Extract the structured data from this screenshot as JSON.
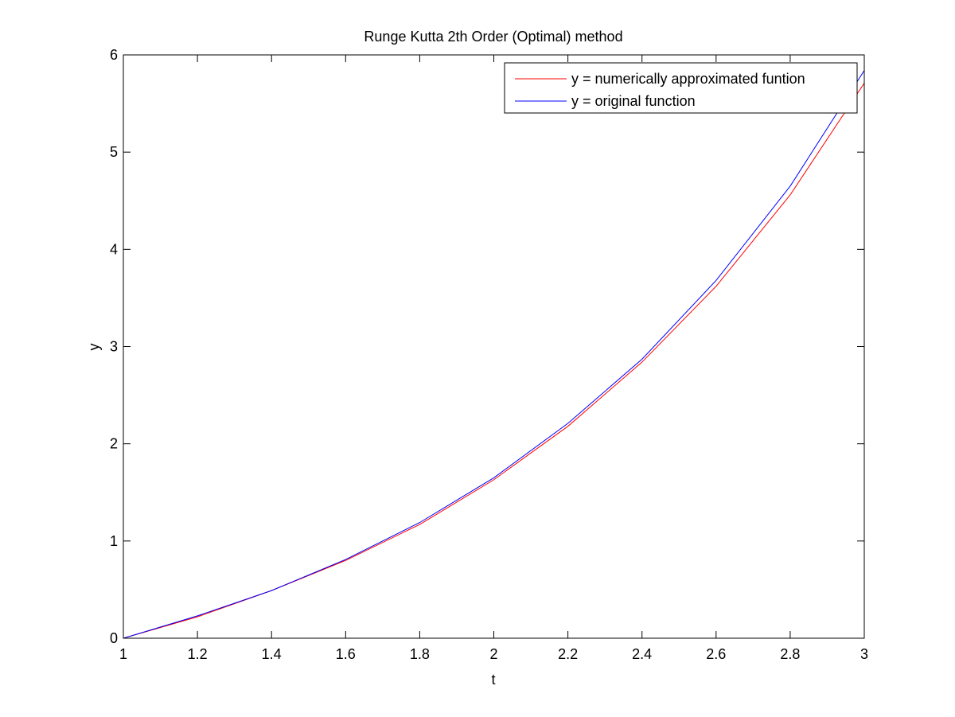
{
  "figure": {
    "title": "Runge Kutta 2th Order (Optimal) method",
    "xlabel": "t",
    "ylabel": "y"
  },
  "chart_data": {
    "type": "line",
    "title": "Runge Kutta 2th Order (Optimal) method",
    "xlabel": "t",
    "ylabel": "y",
    "xlim": [
      1,
      3
    ],
    "ylim": [
      0,
      6
    ],
    "xticks": [
      1,
      1.2,
      1.4,
      1.6,
      1.8,
      2,
      2.2,
      2.4,
      2.6,
      2.8,
      3
    ],
    "xtick_labels": [
      "1",
      "1.2",
      "1.4",
      "1.6",
      "1.8",
      "2",
      "2.2",
      "2.4",
      "2.6",
      "2.8",
      "3"
    ],
    "yticks": [
      0,
      1,
      2,
      3,
      4,
      5,
      6
    ],
    "ytick_labels": [
      "0",
      "1",
      "2",
      "3",
      "4",
      "5",
      "6"
    ],
    "grid": false,
    "legend_position": "top-right",
    "x": [
      1,
      1.2,
      1.4,
      1.6,
      1.8,
      2,
      2.2,
      2.4,
      2.6,
      2.8,
      3
    ],
    "series": [
      {
        "name": "y = numerically approximated funtion",
        "color": "#ff0000",
        "values": [
          0,
          0.22,
          0.49,
          0.8,
          1.17,
          1.63,
          2.18,
          2.84,
          3.62,
          4.56,
          5.71
        ]
      },
      {
        "name": "y = original function",
        "color": "#0000ff",
        "values": [
          0,
          0.23,
          0.49,
          0.81,
          1.19,
          1.65,
          2.21,
          2.87,
          3.68,
          4.65,
          5.84
        ]
      }
    ]
  }
}
